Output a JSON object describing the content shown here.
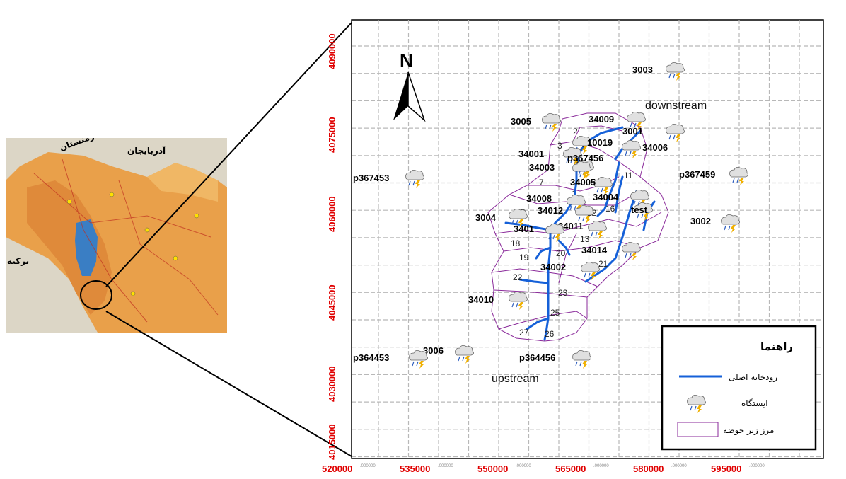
{
  "inset": {
    "labels": [
      "آذربایجان",
      "ارمنستان",
      "ترکیه"
    ]
  },
  "north": "N",
  "y_ticks": [
    {
      "major": "4090000",
      "minor": ""
    },
    {
      "major": "4075000",
      "minor": ""
    },
    {
      "major": "4060000",
      "minor": ""
    },
    {
      "major": "4045000",
      "minor": ""
    },
    {
      "major": "4030000",
      "minor": ""
    },
    {
      "major": "4015000",
      "minor": ""
    }
  ],
  "x_ticks": [
    {
      "major": "520000",
      "minor": ".000000"
    },
    {
      "major": "535000",
      "minor": ".000000"
    },
    {
      "major": "550000",
      "minor": ".000000"
    },
    {
      "major": "565000",
      "minor": ".000000"
    },
    {
      "major": "580000",
      "minor": ".000000"
    },
    {
      "major": "595000",
      "minor": ".000000"
    }
  ],
  "stations": [
    {
      "label": "3003"
    },
    {
      "label": "3005"
    },
    {
      "label": "34009"
    },
    {
      "label": "3001"
    },
    {
      "label": "34006"
    },
    {
      "label": "10019"
    },
    {
      "label": "34001"
    },
    {
      "label": "p367456"
    },
    {
      "label": "34003"
    },
    {
      "label": "p367453"
    },
    {
      "label": "p367459"
    },
    {
      "label": "34005"
    },
    {
      "label": "34008"
    },
    {
      "label": "34004"
    },
    {
      "label": "3004"
    },
    {
      "label": "34012"
    },
    {
      "label": "34011"
    },
    {
      "label": "3002"
    },
    {
      "label": "test"
    },
    {
      "label": "34014"
    },
    {
      "label": "34002"
    },
    {
      "label": "34010"
    },
    {
      "label": "3006"
    },
    {
      "label": "p364453"
    },
    {
      "label": "p364456"
    },
    {
      "label": "3401"
    }
  ],
  "subbasin_numbers": [
    "2",
    "3",
    "4",
    "8",
    "7",
    "1",
    "5",
    "12",
    "11",
    "13",
    "16",
    "18",
    "19",
    "20",
    "21",
    "22",
    "23",
    "25",
    "27",
    "26"
  ],
  "regions": {
    "downstream": "downstream",
    "upstream": "upstream"
  },
  "legend": {
    "title": "راهنما",
    "river": "رودخانه اصلی",
    "station": "ایستگاه",
    "boundary": "مرز زیر حوضه"
  },
  "colors": {
    "river": "#1560d8",
    "boundary": "#8a2a9a",
    "axis_label": "#e00000",
    "grid": "#b8b8b8"
  }
}
